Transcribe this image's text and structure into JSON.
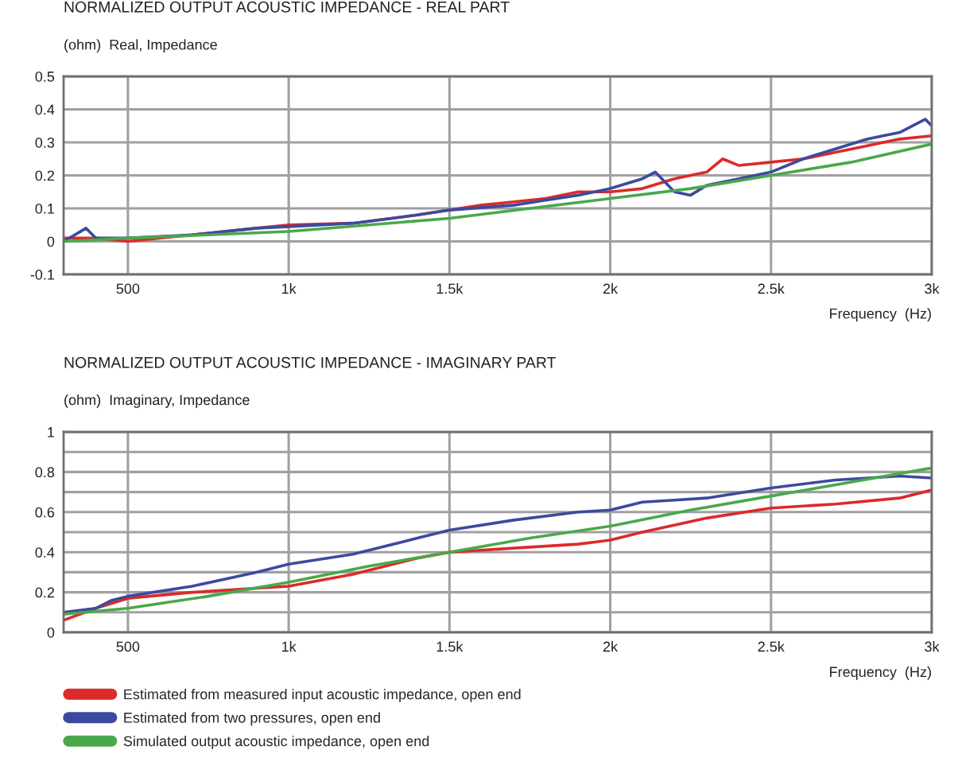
{
  "chart_data": [
    {
      "type": "line",
      "title": "NORMALIZED OUTPUT ACOUSTIC IMPEDANCE - REAL PART",
      "ylabel": "(ohm)  Real, Impedance",
      "xlabel": "Frequency  (Hz)",
      "xlim": [
        300,
        3000
      ],
      "xticks": [
        {
          "value": 500,
          "label": "500"
        },
        {
          "value": 1000,
          "label": "1k"
        },
        {
          "value": 1500,
          "label": "1.5k"
        },
        {
          "value": 2000,
          "label": "2k"
        },
        {
          "value": 2500,
          "label": "2.5k"
        },
        {
          "value": 3000,
          "label": "3k"
        }
      ],
      "ylim": [
        -0.1,
        0.5
      ],
      "yticks": [
        -0.1,
        0,
        0.1,
        0.2,
        0.3,
        0.4,
        0.5
      ],
      "grid": true,
      "legend": false,
      "series": [
        {
          "color": "#dc2a2a",
          "x": [
            300,
            400,
            500,
            700,
            900,
            1000,
            1200,
            1400,
            1500,
            1600,
            1700,
            1800,
            1900,
            2000,
            2100,
            2200,
            2300,
            2350,
            2400,
            2500,
            2600,
            2700,
            2800,
            2900,
            3000
          ],
          "values": [
            0.01,
            0.01,
            0.0,
            0.02,
            0.04,
            0.05,
            0.055,
            0.08,
            0.095,
            0.11,
            0.12,
            0.13,
            0.15,
            0.15,
            0.16,
            0.19,
            0.21,
            0.25,
            0.23,
            0.24,
            0.25,
            0.27,
            0.29,
            0.31,
            0.32
          ]
        },
        {
          "color": "#3c4a9e",
          "x": [
            300,
            370,
            400,
            500,
            700,
            900,
            1000,
            1200,
            1400,
            1500,
            1700,
            1900,
            2000,
            2100,
            2140,
            2200,
            2250,
            2300,
            2400,
            2500,
            2600,
            2700,
            2800,
            2900,
            2980,
            3000
          ],
          "values": [
            0.0,
            0.04,
            0.01,
            0.01,
            0.02,
            0.04,
            0.045,
            0.055,
            0.08,
            0.095,
            0.11,
            0.14,
            0.16,
            0.19,
            0.21,
            0.15,
            0.14,
            0.17,
            0.19,
            0.21,
            0.25,
            0.28,
            0.31,
            0.33,
            0.37,
            0.35
          ]
        },
        {
          "color": "#4aa84a",
          "x": [
            300,
            500,
            750,
            1000,
            1250,
            1500,
            1750,
            2000,
            2250,
            2500,
            2750,
            3000
          ],
          "values": [
            0.0,
            0.01,
            0.02,
            0.03,
            0.05,
            0.07,
            0.1,
            0.13,
            0.16,
            0.2,
            0.24,
            0.295
          ]
        }
      ]
    },
    {
      "type": "line",
      "title": "NORMALIZED OUTPUT ACOUSTIC IMPEDANCE - IMAGINARY PART",
      "ylabel": "(ohm)  Imaginary, Impedance",
      "xlabel": "Frequency  (Hz)",
      "xlim": [
        300,
        3000
      ],
      "xticks": [
        {
          "value": 500,
          "label": "500"
        },
        {
          "value": 1000,
          "label": "1k"
        },
        {
          "value": 1500,
          "label": "1.5k"
        },
        {
          "value": 2000,
          "label": "2k"
        },
        {
          "value": 2500,
          "label": "2.5k"
        },
        {
          "value": 3000,
          "label": "3k"
        }
      ],
      "ylim": [
        0,
        1
      ],
      "yticks": [
        0,
        {
          "value": 0.1,
          "label": null
        },
        0.2,
        {
          "value": 0.3,
          "label": null
        },
        0.4,
        {
          "value": 0.5,
          "label": null
        },
        0.6,
        {
          "value": 0.7,
          "label": null
        },
        0.8,
        {
          "value": 0.9,
          "label": null
        },
        1
      ],
      "grid": true,
      "legend": "bottom",
      "series": [
        {
          "name": "Estimated from measured input acoustic impedance, open end",
          "color": "#dc2a2a",
          "x": [
            300,
            400,
            500,
            700,
            900,
            1000,
            1200,
            1400,
            1500,
            1700,
            1900,
            2000,
            2100,
            2300,
            2500,
            2700,
            2900,
            3000
          ],
          "values": [
            0.06,
            0.12,
            0.17,
            0.2,
            0.22,
            0.23,
            0.29,
            0.37,
            0.4,
            0.42,
            0.44,
            0.46,
            0.5,
            0.57,
            0.62,
            0.64,
            0.67,
            0.71
          ]
        },
        {
          "name": "Estimated from two pressures, open end",
          "color": "#3c4a9e",
          "x": [
            300,
            400,
            450,
            500,
            700,
            900,
            1000,
            1200,
            1400,
            1500,
            1700,
            1900,
            2000,
            2100,
            2200,
            2300,
            2500,
            2700,
            2900,
            3000
          ],
          "values": [
            0.1,
            0.12,
            0.16,
            0.18,
            0.23,
            0.3,
            0.34,
            0.39,
            0.47,
            0.51,
            0.56,
            0.6,
            0.61,
            0.65,
            0.66,
            0.67,
            0.72,
            0.76,
            0.78,
            0.77
          ]
        },
        {
          "name": "Simulated output acoustic impedance, open end",
          "color": "#4aa84a",
          "x": [
            300,
            500,
            750,
            1000,
            1250,
            1500,
            1750,
            2000,
            2250,
            2500,
            2750,
            3000
          ],
          "values": [
            0.09,
            0.12,
            0.18,
            0.25,
            0.33,
            0.4,
            0.47,
            0.53,
            0.61,
            0.68,
            0.75,
            0.82
          ]
        }
      ]
    }
  ]
}
